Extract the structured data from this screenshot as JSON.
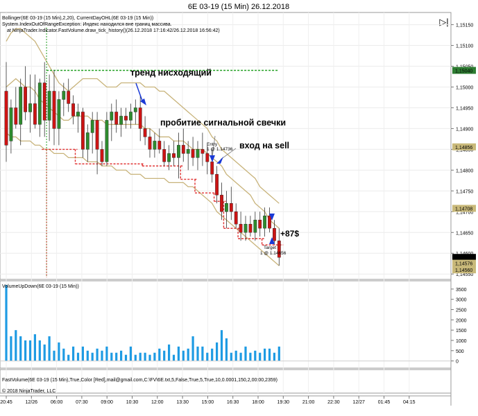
{
  "window": {
    "title": "6E 03-19 (15 Min)  26.12.2018",
    "collapse_glyph": "▷|"
  },
  "price_panel": {
    "indicator_lines": [
      "Bollinger(6E 03-19 (15 Min),2,20), CurrentDayOHL(6E 03-19 (15 Min))",
      "System.IndexOutOfRangeException: Индекс находился вне границ массива.",
      "at NinjaTrader.Indicator.FastVolume.draw_tick_history()(26.12.2018 17:16:42/26.12.2018 16:56:42)"
    ],
    "annotations": {
      "trend": "тренд нисходящий",
      "breakout": "пробитие сигнальной свечки",
      "entry": "вход на sell",
      "profit": "+87$",
      "entry_tag": "Entry",
      "entry_price": "1 @ 1.14736",
      "target_tag": "Target",
      "target_price": "1 @ 1.14656"
    },
    "tag_colors": {
      "green": "#2e7d32",
      "dark": "#000000",
      "olive": "#c9b97a"
    }
  },
  "volume_panel": {
    "label": "VolumeUpDown(6E 03-19 (15 Min))"
  },
  "fastvolume_panel": {
    "label": "FastVolume(6E 03-19 (15 Min),True,Color [Red],mail@gmail.com,C:\\FV\\6E.txt,5,False,True,5,True,10,0.0001,150,2,00:00,2359)"
  },
  "copyright": "© 2018 NinjaTrader, LLC",
  "colors": {
    "up": "#2e8b2e",
    "down": "#cc1414",
    "bollinger": "#c8b37a",
    "day_high": "#1f9e1f",
    "day_low": "#e03030",
    "volume": "#1e9be3",
    "arrow": "#1a3ad6"
  },
  "chart_data": [
    {
      "type": "candlestick",
      "title": "6E 03-19 (15 Min)  26.12.2018",
      "y_ticks": [
        1.1515,
        1.151,
        1.1505,
        1.15,
        1.1495,
        1.149,
        1.1485,
        1.148,
        1.1475,
        1.147,
        1.1465,
        1.146,
        1.1455
      ],
      "y_tick_labels": [
        "1,15150",
        "1,15100",
        "1,15050",
        "1,15000",
        "1,14950",
        "1,14900",
        "1,14850",
        "1,14800",
        "1,14750",
        "1,14700",
        "1,14650",
        "1,14600",
        "1,14550"
      ],
      "ylim": [
        1.14542,
        1.15176
      ],
      "price_tags": [
        {
          "value": 1.1504,
          "label": "1,15040",
          "color": "green"
        },
        {
          "value": 1.14856,
          "label": "1,14856",
          "color": "olive"
        },
        {
          "value": 1.14708,
          "label": "1,14708",
          "color": "olive"
        },
        {
          "value": 1.1459,
          "label": "1,14590",
          "color": "dark"
        },
        {
          "value": 1.14576,
          "label": "1,14576",
          "color": "olive"
        },
        {
          "value": 1.1456,
          "label": "1,14560",
          "color": "olive"
        }
      ],
      "candles": [
        {
          "o": 1.1499,
          "h": 1.1506,
          "l": 1.1482,
          "c": 1.1486
        },
        {
          "o": 1.1487,
          "h": 1.1497,
          "l": 1.1484,
          "c": 1.1495
        },
        {
          "o": 1.1495,
          "h": 1.15,
          "l": 1.149,
          "c": 1.1491
        },
        {
          "o": 1.1491,
          "h": 1.1502,
          "l": 1.1486,
          "c": 1.15
        },
        {
          "o": 1.15,
          "h": 1.1505,
          "l": 1.1492,
          "c": 1.1494
        },
        {
          "o": 1.1494,
          "h": 1.1503,
          "l": 1.1489,
          "c": 1.1496
        },
        {
          "o": 1.1496,
          "h": 1.1503,
          "l": 1.149,
          "c": 1.1491
        },
        {
          "o": 1.1491,
          "h": 1.1502,
          "l": 1.1488,
          "c": 1.1501
        },
        {
          "o": 1.1501,
          "h": 1.1506,
          "l": 1.1488,
          "c": 1.1492
        },
        {
          "o": 1.1492,
          "h": 1.1503,
          "l": 1.1487,
          "c": 1.1499
        },
        {
          "o": 1.1499,
          "h": 1.1504,
          "l": 1.1486,
          "c": 1.149
        },
        {
          "o": 1.149,
          "h": 1.1499,
          "l": 1.1486,
          "c": 1.1497
        },
        {
          "o": 1.1497,
          "h": 1.1501,
          "l": 1.1493,
          "c": 1.1499
        },
        {
          "o": 1.1499,
          "h": 1.1502,
          "l": 1.1494,
          "c": 1.1496
        },
        {
          "o": 1.1496,
          "h": 1.1498,
          "l": 1.1491,
          "c": 1.1493
        },
        {
          "o": 1.1493,
          "h": 1.1496,
          "l": 1.1489,
          "c": 1.1494
        },
        {
          "o": 1.1494,
          "h": 1.1495,
          "l": 1.1483,
          "c": 1.1485
        },
        {
          "o": 1.1485,
          "h": 1.1491,
          "l": 1.1482,
          "c": 1.1489
        },
        {
          "o": 1.1489,
          "h": 1.1494,
          "l": 1.1484,
          "c": 1.1492
        },
        {
          "o": 1.1492,
          "h": 1.1494,
          "l": 1.1479,
          "c": 1.1485
        },
        {
          "o": 1.1485,
          "h": 1.1487,
          "l": 1.1481,
          "c": 1.1482
        },
        {
          "o": 1.1482,
          "h": 1.1494,
          "l": 1.1481,
          "c": 1.1492
        },
        {
          "o": 1.1492,
          "h": 1.1496,
          "l": 1.1487,
          "c": 1.1494
        },
        {
          "o": 1.1494,
          "h": 1.1497,
          "l": 1.1489,
          "c": 1.1491
        },
        {
          "o": 1.1491,
          "h": 1.1495,
          "l": 1.1488,
          "c": 1.1493
        },
        {
          "o": 1.1493,
          "h": 1.1495,
          "l": 1.149,
          "c": 1.1492
        },
        {
          "o": 1.1492,
          "h": 1.1496,
          "l": 1.149,
          "c": 1.1494
        },
        {
          "o": 1.1494,
          "h": 1.1497,
          "l": 1.1491,
          "c": 1.1495
        },
        {
          "o": 1.1495,
          "h": 1.1498,
          "l": 1.1487,
          "c": 1.149
        },
        {
          "o": 1.149,
          "h": 1.1493,
          "l": 1.1486,
          "c": 1.1488
        },
        {
          "o": 1.1488,
          "h": 1.149,
          "l": 1.1483,
          "c": 1.1485
        },
        {
          "o": 1.1485,
          "h": 1.1489,
          "l": 1.1483,
          "c": 1.1487
        },
        {
          "o": 1.1487,
          "h": 1.149,
          "l": 1.1484,
          "c": 1.1485
        },
        {
          "o": 1.1485,
          "h": 1.1487,
          "l": 1.1481,
          "c": 1.1482
        },
        {
          "o": 1.1482,
          "h": 1.1486,
          "l": 1.148,
          "c": 1.1484
        },
        {
          "o": 1.1484,
          "h": 1.1487,
          "l": 1.1481,
          "c": 1.1483
        },
        {
          "o": 1.1483,
          "h": 1.1489,
          "l": 1.1478,
          "c": 1.1486
        },
        {
          "o": 1.1486,
          "h": 1.149,
          "l": 1.1482,
          "c": 1.1484
        },
        {
          "o": 1.1484,
          "h": 1.1487,
          "l": 1.148,
          "c": 1.1485
        },
        {
          "o": 1.1485,
          "h": 1.1488,
          "l": 1.1481,
          "c": 1.1483
        },
        {
          "o": 1.1483,
          "h": 1.1487,
          "l": 1.148,
          "c": 1.1485
        },
        {
          "o": 1.1485,
          "h": 1.1489,
          "l": 1.1481,
          "c": 1.1484
        },
        {
          "o": 1.1484,
          "h": 1.1486,
          "l": 1.1479,
          "c": 1.1482
        },
        {
          "o": 1.1482,
          "h": 1.1485,
          "l": 1.1477,
          "c": 1.1479
        },
        {
          "o": 1.1479,
          "h": 1.1481,
          "l": 1.1472,
          "c": 1.1474
        },
        {
          "o": 1.1474,
          "h": 1.1477,
          "l": 1.1468,
          "c": 1.147
        },
        {
          "o": 1.147,
          "h": 1.1475,
          "l": 1.1466,
          "c": 1.1472
        },
        {
          "o": 1.1472,
          "h": 1.1476,
          "l": 1.1468,
          "c": 1.147
        },
        {
          "o": 1.147,
          "h": 1.1472,
          "l": 1.1466,
          "c": 1.1467
        },
        {
          "o": 1.1467,
          "h": 1.147,
          "l": 1.1463,
          "c": 1.1465
        },
        {
          "o": 1.1465,
          "h": 1.1469,
          "l": 1.1463,
          "c": 1.1467
        },
        {
          "o": 1.1467,
          "h": 1.1469,
          "l": 1.1464,
          "c": 1.1465
        },
        {
          "o": 1.1465,
          "h": 1.147,
          "l": 1.1463,
          "c": 1.1468
        },
        {
          "o": 1.1468,
          "h": 1.147,
          "l": 1.1464,
          "c": 1.1466
        },
        {
          "o": 1.1466,
          "h": 1.1471,
          "l": 1.1464,
          "c": 1.1469
        },
        {
          "o": 1.1469,
          "h": 1.1471,
          "l": 1.1465,
          "c": 1.1466
        },
        {
          "o": 1.1466,
          "h": 1.1468,
          "l": 1.1462,
          "c": 1.1463
        },
        {
          "o": 1.1463,
          "h": 1.1466,
          "l": 1.1457,
          "c": 1.1459
        }
      ],
      "day_high": 1.1504,
      "day_low_steps": [
        {
          "from": 8,
          "to": 15,
          "value": 1.1485
        },
        {
          "from": 15,
          "to": 29,
          "value": 1.14815
        },
        {
          "from": 29,
          "to": 37,
          "value": 1.1481
        },
        {
          "from": 37,
          "to": 40,
          "value": 1.14778
        },
        {
          "from": 40,
          "to": 44,
          "value": 1.14745
        },
        {
          "from": 44,
          "to": 46,
          "value": 1.14725
        },
        {
          "from": 46,
          "to": 49,
          "value": 1.1466
        },
        {
          "from": 49,
          "to": 54,
          "value": 1.14635
        },
        {
          "from": 54,
          "to": 58,
          "value": 1.1462
        }
      ],
      "bollinger_upper": [
        1.1511,
        1.1513,
        1.1514,
        1.1514,
        1.1513,
        1.1512,
        1.1511,
        1.1509,
        1.1507,
        1.1505,
        1.1503,
        1.1501,
        1.15,
        1.1499,
        1.15,
        1.1501,
        1.1502,
        1.1502,
        1.1502,
        1.1502,
        1.1501,
        1.15,
        1.15,
        1.15,
        1.1501,
        1.1501,
        1.1501,
        1.1501,
        1.1501,
        1.15,
        1.15,
        1.15,
        1.1499,
        1.1499,
        1.1498,
        1.1497,
        1.1496,
        1.1495,
        1.1494,
        1.1493,
        1.1492,
        1.1491,
        1.149,
        1.1488,
        1.1487,
        1.1485,
        1.1484,
        1.1483,
        1.1482,
        1.1481,
        1.148,
        1.1479,
        1.1478,
        1.1476,
        1.1475,
        1.1474,
        1.1473,
        1.1472
      ],
      "bollinger_mid": [
        1.15,
        1.1501,
        1.1502,
        1.1501,
        1.15,
        1.15,
        1.1499,
        1.1497,
        1.1496,
        1.1495,
        1.1494,
        1.1493,
        1.1492,
        1.1492,
        1.1493,
        1.1493,
        1.1493,
        1.1493,
        1.1492,
        1.1492,
        1.1492,
        1.1491,
        1.1491,
        1.1491,
        1.1491,
        1.1491,
        1.1491,
        1.1491,
        1.1491,
        1.149,
        1.149,
        1.1489,
        1.1488,
        1.1488,
        1.1488,
        1.1487,
        1.1487,
        1.1487,
        1.1486,
        1.1485,
        1.1485,
        1.1485,
        1.1484,
        1.1483,
        1.1482,
        1.1481,
        1.1479,
        1.1478,
        1.1477,
        1.1476,
        1.1475,
        1.1474,
        1.1472,
        1.1471,
        1.147,
        1.1468,
        1.1467,
        1.1466
      ],
      "bollinger_lower": [
        1.1489,
        1.1488,
        1.1488,
        1.1487,
        1.1487,
        1.1487,
        1.1486,
        1.1486,
        1.1485,
        1.1485,
        1.1484,
        1.1484,
        1.1484,
        1.1483,
        1.1483,
        1.1483,
        1.1483,
        1.1482,
        1.1482,
        1.1482,
        1.1481,
        1.1481,
        1.1481,
        1.148,
        1.148,
        1.148,
        1.1479,
        1.1479,
        1.1479,
        1.1478,
        1.1478,
        1.1478,
        1.1478,
        1.1478,
        1.1477,
        1.1477,
        1.1477,
        1.1477,
        1.1476,
        1.1476,
        1.1475,
        1.1474,
        1.1473,
        1.1472,
        1.147,
        1.1469,
        1.1468,
        1.1467,
        1.1466,
        1.1465,
        1.1464,
        1.1463,
        1.1462,
        1.1461,
        1.146,
        1.1459,
        1.1458,
        1.1457
      ]
    },
    {
      "type": "bar",
      "name": "VolumeUpDown",
      "y_ticks": [
        0,
        500,
        1000,
        1500,
        2000,
        2500,
        3000,
        3500
      ],
      "y_tick_labels": [
        "0",
        "500",
        "1000",
        "1500",
        "2000",
        "2500",
        "3000",
        "3500"
      ],
      "ylim": [
        -250,
        3800
      ],
      "values": [
        3700,
        1200,
        1500,
        1200,
        1000,
        1000,
        1300,
        1000,
        800,
        1200,
        500,
        900,
        600,
        300,
        700,
        400,
        700,
        500,
        400,
        600,
        500,
        700,
        400,
        400,
        500,
        300,
        700,
        300,
        400,
        400,
        300,
        400,
        600,
        500,
        800,
        300,
        700,
        500,
        600,
        1200,
        700,
        700,
        400,
        600,
        900,
        1500,
        1100,
        400,
        500,
        400,
        700,
        400,
        500,
        400,
        600,
        600,
        400,
        700
      ]
    }
  ],
  "x_axis": {
    "labels": [
      "20:45",
      "12/26",
      "06:00",
      "07:30",
      "09:00",
      "10:30",
      "12:00",
      "13:30",
      "15:00",
      "16:30",
      "18:00",
      "19:30",
      "21:00",
      "22:30",
      "12/27",
      "01:45",
      "04:15"
    ]
  }
}
